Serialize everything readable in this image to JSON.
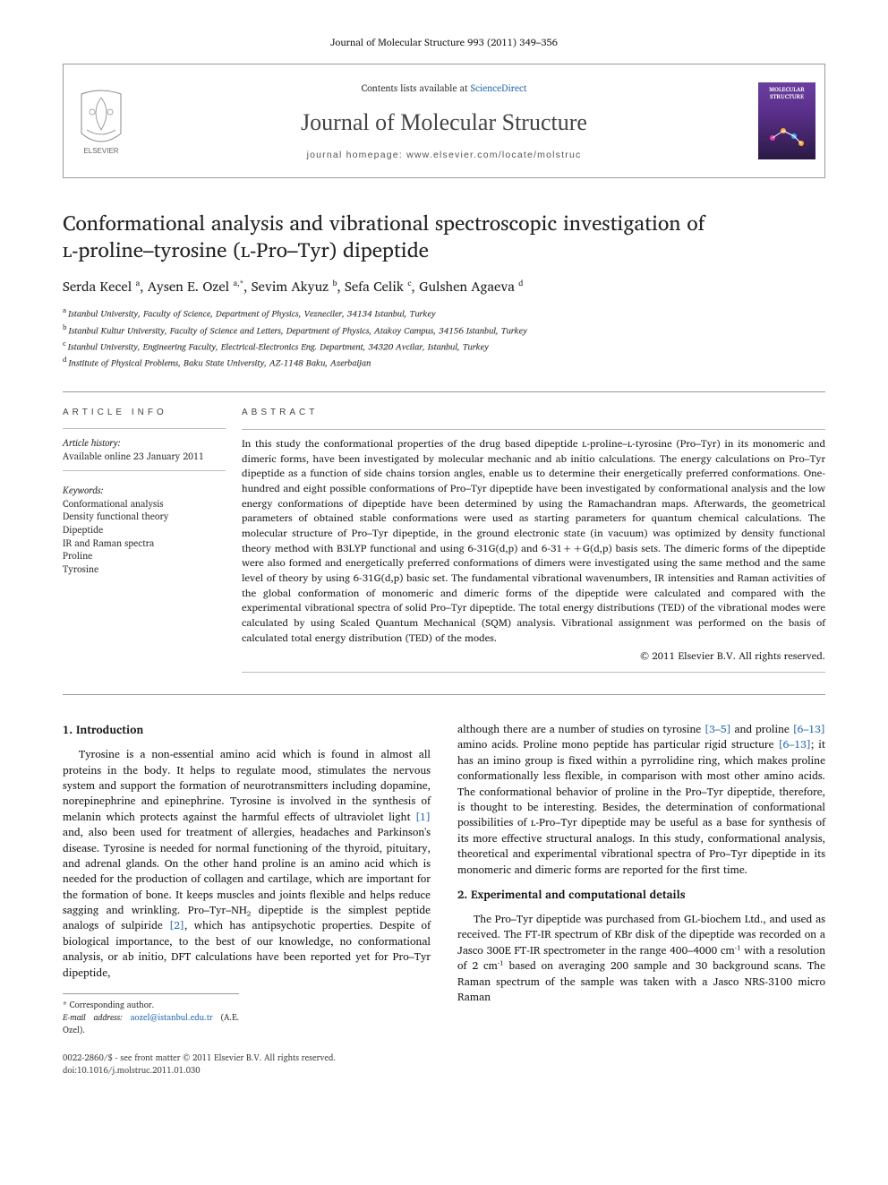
{
  "journal_ref": "Journal of Molecular Structure 993 (2011) 349–356",
  "header": {
    "contents_prefix": "Contents lists available at ",
    "contents_link": "ScienceDirect",
    "journal_name": "Journal of Molecular Structure",
    "homepage_prefix": "journal homepage: ",
    "homepage_url": "www.elsevier.com/locate/molstruc",
    "cover_label_top": "MOLECULAR",
    "cover_label_bottom": "STRUCTURE",
    "elsevier_label": "ELSEVIER"
  },
  "article": {
    "title_line1": "Conformational analysis and vibrational spectroscopic investigation of",
    "title_line2": "ʟ-proline–tyrosine (ʟ-Pro–Tyr) dipeptide",
    "authors_html": "Serda Kecel <sup>a</sup>, Aysen E. Ozel <sup>a,*</sup>, Sevim Akyuz <sup>b</sup>, Sefa Celik <sup>c</sup>, Gulshen Agaeva <sup>d</sup>"
  },
  "affiliations": [
    {
      "key": "a",
      "text": "Istanbul University, Faculty of Science, Department of Physics, Vezneciler, 34134 Istanbul, Turkey"
    },
    {
      "key": "b",
      "text": "Istanbul Kultur University, Faculty of Science and Letters, Department of Physics, Atakoy Campus, 34156 Istanbul, Turkey"
    },
    {
      "key": "c",
      "text": "Istanbul University, Engineering Faculty, Electrical-Electronics Eng. Department, 34320 Avcilar, Istanbul, Turkey"
    },
    {
      "key": "d",
      "text": "Institute of Physical Problems, Baku State University, AZ-1148 Baku, Azerbaijan"
    }
  ],
  "article_info": {
    "label": "ARTICLE INFO",
    "history_label": "Article history:",
    "history_text": "Available online 23 January 2011",
    "keywords_label": "Keywords:",
    "keywords": [
      "Conformational analysis",
      "Density functional theory",
      "Dipeptide",
      "IR and Raman spectra",
      "Proline",
      "Tyrosine"
    ]
  },
  "abstract": {
    "label": "ABSTRACT",
    "text": "In this study the conformational properties of the drug based dipeptide ʟ-proline–ʟ-tyrosine (Pro–Tyr) in its monomeric and dimeric forms, have been investigated by molecular mechanic and ab initio calculations. The energy calculations on Pro–Tyr dipeptide as a function of side chains torsion angles, enable us to determine their energetically preferred conformations. One-hundred and eight possible conformations of Pro–Tyr dipeptide have been investigated by conformational analysis and the low energy conformations of dipeptide have been determined by using the Ramachandran maps. Afterwards, the geometrical parameters of obtained stable conformations were used as starting parameters for quantum chemical calculations. The molecular structure of Pro–Tyr dipeptide, in the ground electronic state (in vacuum) was optimized by density functional theory method with B3LYP functional and using 6-31G(d,p) and 6-31++G(d,p) basis sets. The dimeric forms of the dipeptide were also formed and energetically preferred conformations of dimers were investigated using the same method and the same level of theory by using 6-31G(d,p) basic set. The fundamental vibrational wavenumbers, IR intensities and Raman activities of the global conformation of monomeric and dimeric forms of the dipeptide were calculated and compared with the experimental vibrational spectra of solid Pro–Tyr dipeptide. The total energy distributions (TED) of the vibrational modes were calculated by using Scaled Quantum Mechanical (SQM) analysis. Vibrational assignment was performed on the basis of calculated total energy distribution (TED) of the modes.",
    "copyright": "© 2011 Elsevier B.V. All rights reserved."
  },
  "sections": {
    "intro_heading": "1. Introduction",
    "intro_p1a": "Tyrosine is a non-essential amino acid which is found in almost all proteins in the body. It helps to regulate mood, stimulates the nervous system and support the formation of neurotransmitters including dopamine, norepinephrine and epinephrine. Tyrosine is involved in the synthesis of melanin which protects against the harmful effects of ultraviolet light ",
    "intro_ref1": "[1]",
    "intro_p1b": " and, also been used for treatment of allergies, headaches and Parkinson's disease. Tyrosine is needed for normal functioning of the thyroid, pituitary, and adrenal glands. On the other hand proline is an amino acid which is needed for the production of collagen and cartilage, which are important for the formation of bone. It keeps muscles and joints flexible and helps reduce sagging and wrinkling. Pro–Tyr–NH₂ dipeptide is the simplest peptide analogs of sulpiride ",
    "intro_ref2": "[2]",
    "intro_p1c": ", which has antipsychotic properties. Despite of biological importance, to the best of our knowledge, no conformational analysis, or ab initio, DFT calculations have been reported yet for Pro–Tyr dipeptide,",
    "intro_p2a": "although there are a number of studies on tyrosine ",
    "intro_ref35": "[3–5]",
    "intro_p2b": " and proline ",
    "intro_ref613": "[6–13]",
    "intro_p2c": " amino acids. Proline mono peptide has particular rigid structure ",
    "intro_ref613b": "[6–13]",
    "intro_p2d": "; it has an imino group is fixed within a pyrrolidine ring, which makes proline conformationally less flexible, in comparison with most other amino acids. The conformational behavior of proline in the Pro–Tyr dipeptide, therefore, is thought to be interesting. Besides, the determination of conformational possibilities of ʟ-Pro–Tyr dipeptide may be useful as a base for synthesis of its more effective structural analogs. In this study, conformational analysis, theoretical and experimental vibrational spectra of Pro–Tyr dipeptide in its monomeric and dimeric forms are reported for the first time.",
    "exp_heading": "2. Experimental and computational details",
    "exp_p1": "The Pro–Tyr dipeptide was purchased from GL-biochem Ltd., and used as received. The FT-IR spectrum of KBr disk of the dipeptide was recorded on a Jasco 300E FT-IR spectrometer in the range 400–4000 cm⁻¹ with a resolution of 2 cm⁻¹ based on averaging 200 sample and 30 background scans. The Raman spectrum of the sample was taken with a Jasco NRS-3100 micro Raman"
  },
  "footnotes": {
    "corr_label": "* Corresponding author.",
    "email_label": "E-mail address:",
    "email": "aozel@istanbul.edu.tr",
    "email_name": "(A.E. Ozel)."
  },
  "footer": {
    "issn_line": "0022-2860/$ - see front matter © 2011 Elsevier B.V. All rights reserved.",
    "doi_line": "doi:10.1016/j.molstruc.2011.01.030"
  },
  "colors": {
    "text": "#1a1a1a",
    "link": "#2b6cb0",
    "border": "#999999",
    "thin_border": "#bbbbbb",
    "cover_top": "#6b3fa0",
    "cover_bottom": "#2a1a44"
  }
}
